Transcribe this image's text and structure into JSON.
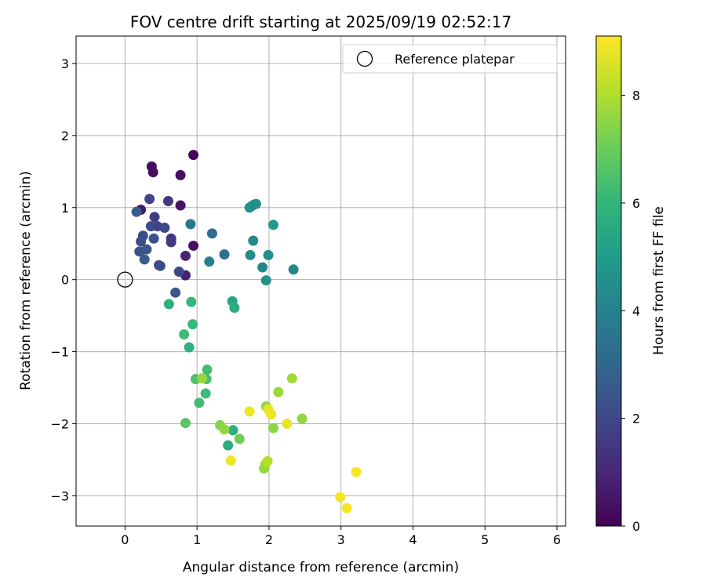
{
  "chart_data": {
    "type": "scatter",
    "title": "FOV centre drift starting at 2025/09/19 02:52:17",
    "xlabel": "Angular distance from reference (arcmin)",
    "ylabel": "Rotation from reference (arcmin)",
    "xlim": [
      -0.68,
      6.12
    ],
    "ylim": [
      -3.42,
      3.38
    ],
    "xticks": [
      0,
      1,
      2,
      3,
      4,
      5,
      6
    ],
    "yticks": [
      -3,
      -2,
      -1,
      0,
      1,
      2,
      3
    ],
    "xtick_labels": [
      "0",
      "1",
      "2",
      "3",
      "4",
      "5",
      "6"
    ],
    "ytick_labels": [
      "−3",
      "−2",
      "−1",
      "0",
      "1",
      "2",
      "3"
    ],
    "grid": true,
    "legend": {
      "placement": "top-right",
      "entries": [
        "Reference platepar"
      ]
    },
    "reference_point": {
      "x": 0,
      "y": 0
    },
    "colorbar": {
      "label": "Hours from first FF file",
      "range": [
        0,
        9.1
      ],
      "ticks": [
        0,
        2,
        4,
        6,
        8
      ],
      "tick_labels": [
        "0",
        "2",
        "4",
        "6",
        "8"
      ],
      "colormap": "viridis",
      "colormap_stops": [
        "#440154",
        "#482878",
        "#3e4989",
        "#31688e",
        "#26828e",
        "#1f9e89",
        "#35b779",
        "#6ece58",
        "#b5de2b",
        "#fde725"
      ]
    },
    "points": [
      {
        "x": 0.95,
        "y": 1.73,
        "t": 0.2
      },
      {
        "x": 0.37,
        "y": 1.57,
        "t": 0.3
      },
      {
        "x": 0.39,
        "y": 1.49,
        "t": 0.3
      },
      {
        "x": 0.77,
        "y": 1.45,
        "t": 0.4
      },
      {
        "x": 0.77,
        "y": 1.03,
        "t": 0.5
      },
      {
        "x": 0.22,
        "y": 0.97,
        "t": 0.6
      },
      {
        "x": 0.95,
        "y": 0.47,
        "t": 0.4
      },
      {
        "x": 0.84,
        "y": 0.33,
        "t": 0.9
      },
      {
        "x": 0.84,
        "y": 0.06,
        "t": 0.8
      },
      {
        "x": 0.34,
        "y": 1.12,
        "t": 1.9
      },
      {
        "x": 0.6,
        "y": 1.09,
        "t": 1.5
      },
      {
        "x": 0.41,
        "y": 0.87,
        "t": 1.6
      },
      {
        "x": 0.36,
        "y": 0.74,
        "t": 2.0
      },
      {
        "x": 0.45,
        "y": 0.74,
        "t": 1.8
      },
      {
        "x": 0.55,
        "y": 0.72,
        "t": 2.1
      },
      {
        "x": 0.25,
        "y": 0.61,
        "t": 2.2
      },
      {
        "x": 0.4,
        "y": 0.57,
        "t": 2.3
      },
      {
        "x": 0.22,
        "y": 0.53,
        "t": 2.2
      },
      {
        "x": 0.64,
        "y": 0.57,
        "t": 1.4
      },
      {
        "x": 0.64,
        "y": 0.52,
        "t": 1.5
      },
      {
        "x": 0.3,
        "y": 0.42,
        "t": 2.5
      },
      {
        "x": 0.2,
        "y": 0.39,
        "t": 2.3
      },
      {
        "x": 0.27,
        "y": 0.28,
        "t": 2.6
      },
      {
        "x": 0.47,
        "y": 0.2,
        "t": 2.2
      },
      {
        "x": 0.49,
        "y": 0.19,
        "t": 2.1
      },
      {
        "x": 0.75,
        "y": 0.11,
        "t": 2.0
      },
      {
        "x": 0.7,
        "y": -0.18,
        "t": 2.4
      },
      {
        "x": 0.16,
        "y": 0.94,
        "t": 2.7
      },
      {
        "x": 1.21,
        "y": 0.64,
        "t": 3.2
      },
      {
        "x": 0.91,
        "y": 0.77,
        "t": 3.6
      },
      {
        "x": 1.38,
        "y": 0.35,
        "t": 3.4
      },
      {
        "x": 1.17,
        "y": 0.25,
        "t": 4.0
      },
      {
        "x": 1.73,
        "y": 1.0,
        "t": 4.8
      },
      {
        "x": 1.76,
        "y": 1.02,
        "t": 4.7
      },
      {
        "x": 1.79,
        "y": 1.04,
        "t": 4.6
      },
      {
        "x": 1.82,
        "y": 1.05,
        "t": 4.5
      },
      {
        "x": 2.06,
        "y": 0.76,
        "t": 4.9
      },
      {
        "x": 1.78,
        "y": 0.54,
        "t": 4.3
      },
      {
        "x": 1.74,
        "y": 0.34,
        "t": 4.4
      },
      {
        "x": 1.99,
        "y": 0.34,
        "t": 4.5
      },
      {
        "x": 1.91,
        "y": 0.17,
        "t": 4.2
      },
      {
        "x": 1.96,
        "y": -0.01,
        "t": 4.6
      },
      {
        "x": 2.34,
        "y": 0.14,
        "t": 4.2
      },
      {
        "x": 0.61,
        "y": -0.34,
        "t": 5.8
      },
      {
        "x": 0.92,
        "y": -0.31,
        "t": 6.0
      },
      {
        "x": 1.49,
        "y": -0.3,
        "t": 5.4
      },
      {
        "x": 1.52,
        "y": -0.39,
        "t": 5.6
      },
      {
        "x": 0.94,
        "y": -0.62,
        "t": 6.1
      },
      {
        "x": 0.82,
        "y": -0.76,
        "t": 6.2
      },
      {
        "x": 0.89,
        "y": -0.94,
        "t": 5.8
      },
      {
        "x": 1.14,
        "y": -1.25,
        "t": 6.3
      },
      {
        "x": 0.98,
        "y": -1.38,
        "t": 6.5
      },
      {
        "x": 1.13,
        "y": -1.38,
        "t": 6.4
      },
      {
        "x": 1.12,
        "y": -1.58,
        "t": 6.2
      },
      {
        "x": 1.03,
        "y": -1.71,
        "t": 6.3
      },
      {
        "x": 0.84,
        "y": -1.99,
        "t": 6.7
      },
      {
        "x": 1.5,
        "y": -2.09,
        "t": 5.7
      },
      {
        "x": 1.43,
        "y": -2.3,
        "t": 5.6
      },
      {
        "x": 1.07,
        "y": -1.37,
        "t": 7.6
      },
      {
        "x": 1.32,
        "y": -2.02,
        "t": 7.4
      },
      {
        "x": 1.38,
        "y": -2.08,
        "t": 7.6
      },
      {
        "x": 1.59,
        "y": -2.21,
        "t": 7.1
      },
      {
        "x": 1.73,
        "y": -1.83,
        "t": 8.9
      },
      {
        "x": 1.96,
        "y": -1.76,
        "t": 7.6
      },
      {
        "x": 1.99,
        "y": -1.8,
        "t": 8.8
      },
      {
        "x": 2.03,
        "y": -1.87,
        "t": 8.9
      },
      {
        "x": 2.06,
        "y": -2.06,
        "t": 7.5
      },
      {
        "x": 2.13,
        "y": -1.56,
        "t": 7.7
      },
      {
        "x": 2.25,
        "y": -2.0,
        "t": 8.8
      },
      {
        "x": 2.32,
        "y": -1.37,
        "t": 7.8
      },
      {
        "x": 2.46,
        "y": -1.93,
        "t": 7.6
      },
      {
        "x": 1.47,
        "y": -2.51,
        "t": 8.9
      },
      {
        "x": 1.93,
        "y": -2.62,
        "t": 7.6
      },
      {
        "x": 1.95,
        "y": -2.56,
        "t": 7.8
      },
      {
        "x": 1.98,
        "y": -2.52,
        "t": 8.1
      },
      {
        "x": 2.99,
        "y": -3.02,
        "t": 9.0
      },
      {
        "x": 3.08,
        "y": -3.17,
        "t": 9.0
      },
      {
        "x": 3.21,
        "y": -2.67,
        "t": 9.0
      }
    ]
  }
}
